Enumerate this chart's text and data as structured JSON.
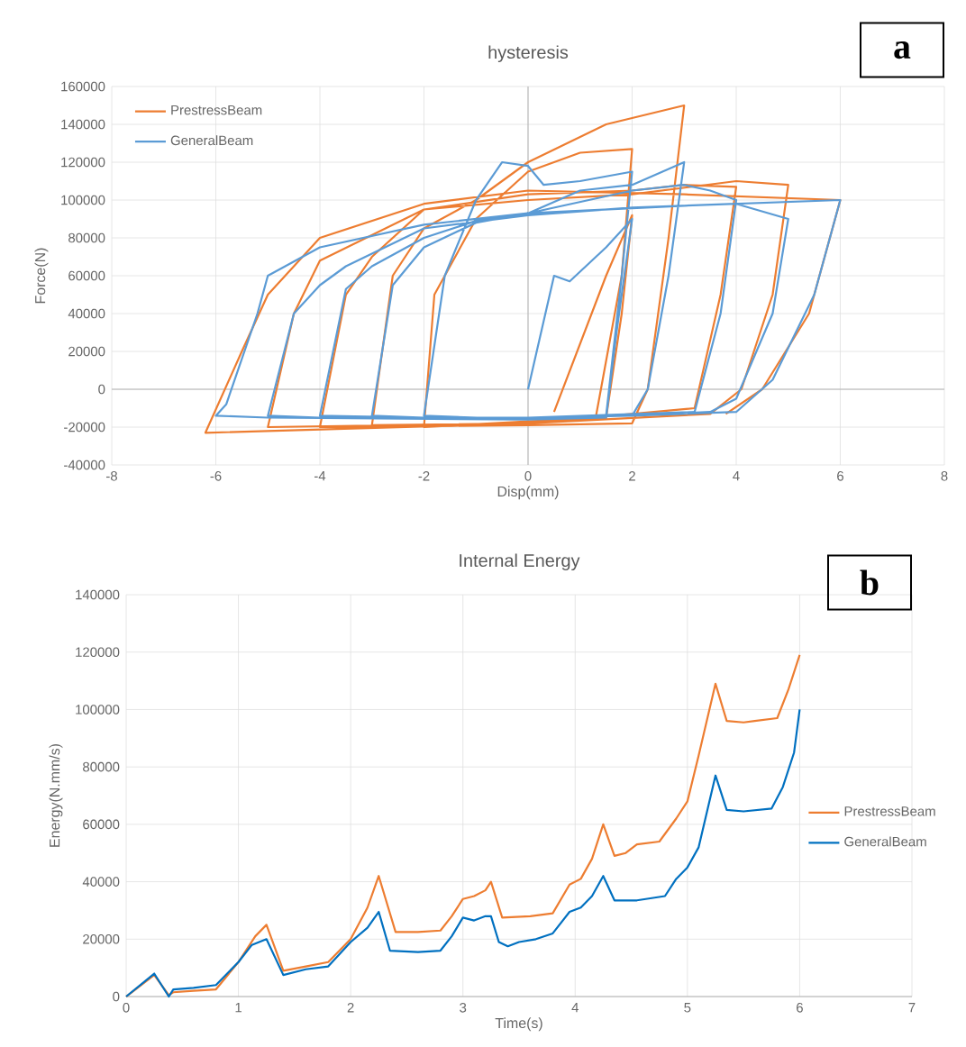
{
  "chart_data": [
    {
      "type": "line",
      "title": "hysteresis",
      "xlabel": "Disp(mm)",
      "ylabel": "Force(N)",
      "xlim": [
        -8,
        8
      ],
      "ylim": [
        -40000,
        160000
      ],
      "xticks": [
        -8,
        -6,
        -4,
        -2,
        0,
        2,
        4,
        6,
        8
      ],
      "yticks": [
        -40000,
        -20000,
        0,
        20000,
        40000,
        60000,
        80000,
        100000,
        120000,
        140000,
        160000
      ],
      "grid": true,
      "legend": "top left",
      "annotations": [
        "a"
      ],
      "series": [
        {
          "name": "PrestressBeam",
          "color": "#ed7d31",
          "x": [
            0.5,
            1.5,
            2,
            1.8,
            1.5,
            0,
            -2,
            -1.8,
            -1,
            0,
            1,
            2,
            1.8,
            1.3,
            0,
            -3,
            -2.6,
            -2,
            -1,
            0,
            1.5,
            3,
            2.7,
            2.3,
            2,
            0,
            -4,
            -3.5,
            -3,
            -2,
            0,
            2,
            3,
            4,
            3.7,
            3.2,
            0,
            -5,
            -4.5,
            -4,
            -2,
            0,
            2,
            4,
            5,
            4.7,
            4.1,
            3.5,
            0,
            -6.2,
            -5.5,
            -5,
            -4,
            -2,
            0,
            3,
            6,
            5.4,
            4.5,
            3.8
          ],
          "values": [
            -12000,
            60000,
            92000,
            40000,
            -15000,
            -17000,
            -20000,
            50000,
            90000,
            115000,
            125000,
            127000,
            60000,
            -15000,
            -18000,
            -19000,
            60000,
            85000,
            100000,
            120000,
            140000,
            150000,
            80000,
            0,
            -18000,
            -19000,
            -20000,
            50000,
            70000,
            95000,
            103000,
            105000,
            108000,
            107000,
            50000,
            -10000,
            -18000,
            -20000,
            40000,
            68000,
            95000,
            100000,
            103000,
            110000,
            108000,
            50000,
            0,
            -13000,
            -18000,
            -23000,
            20000,
            50000,
            80000,
            98000,
            105000,
            103000,
            100000,
            40000,
            0,
            -13000
          ]
        },
        {
          "name": "GeneralBeam",
          "color": "#5b9bd5",
          "x": [
            0,
            0.5,
            0.8,
            1.5,
            2,
            1.7,
            1.5,
            0,
            -2,
            -1.6,
            -1,
            -0.5,
            0,
            0.3,
            1,
            2,
            1.8,
            1.5,
            0,
            -2,
            -3,
            -2.6,
            -2,
            -1,
            0,
            1,
            2,
            3,
            2.7,
            2.3,
            2,
            0,
            -2,
            -4,
            -3.5,
            -3,
            -2,
            -1,
            0,
            2,
            3,
            3.5,
            4,
            3.7,
            3.2,
            0,
            -4,
            -5,
            -4.5,
            -4,
            -3.5,
            -2,
            0,
            2,
            4,
            5,
            4.7,
            4,
            3.5,
            0,
            -5,
            -6,
            -5.8,
            -5.2,
            -5,
            -4,
            -2,
            0,
            3,
            6,
            5.5,
            4.7,
            4,
            2
          ],
          "values": [
            0,
            60000,
            57000,
            75000,
            90000,
            30000,
            -15000,
            -16000,
            -14000,
            60000,
            100000,
            120000,
            118000,
            108000,
            110000,
            115000,
            60000,
            -14000,
            -15000,
            -15000,
            -14000,
            55000,
            75000,
            88000,
            93000,
            105000,
            108000,
            120000,
            60000,
            0,
            -14000,
            -15000,
            -15000,
            -14000,
            53000,
            65000,
            80000,
            89000,
            93000,
            105000,
            108000,
            105000,
            100000,
            40000,
            -12000,
            -15000,
            -15000,
            -14000,
            40000,
            55000,
            65000,
            85000,
            92000,
            96000,
            98000,
            90000,
            40000,
            -5000,
            -12000,
            -16000,
            -15000,
            -14000,
            -8000,
            40000,
            60000,
            75000,
            87000,
            93000,
            97000,
            100000,
            50000,
            5000,
            -12000,
            -14000
          ]
        }
      ]
    },
    {
      "type": "line",
      "title": "Internal Energy",
      "xlabel": "Time(s)",
      "ylabel": "Energy(N.mm/s)",
      "xlim": [
        0,
        7
      ],
      "ylim": [
        0,
        140000
      ],
      "xticks": [
        0,
        1,
        2,
        3,
        4,
        5,
        6,
        7
      ],
      "yticks": [
        0,
        20000,
        40000,
        60000,
        80000,
        100000,
        120000,
        140000
      ],
      "grid": true,
      "legend": "right",
      "annotations": [
        "b"
      ],
      "series": [
        {
          "name": "PrestressBeam",
          "color": "#ed7d31",
          "x": [
            0,
            0.25,
            0.38,
            0.42,
            0.6,
            0.8,
            1.0,
            1.15,
            1.25,
            1.4,
            1.6,
            1.8,
            2.0,
            2.15,
            2.25,
            2.4,
            2.6,
            2.8,
            2.9,
            3.0,
            3.1,
            3.2,
            3.25,
            3.35,
            3.6,
            3.8,
            3.95,
            4.05,
            4.15,
            4.25,
            4.35,
            4.45,
            4.55,
            4.75,
            4.9,
            5.0,
            5.1,
            5.25,
            5.35,
            5.5,
            5.6,
            5.8,
            5.9,
            6.0
          ],
          "values": [
            0,
            7500,
            500,
            1500,
            2000,
            2500,
            12000,
            21000,
            25000,
            9000,
            10500,
            12000,
            20000,
            31000,
            42000,
            22500,
            22500,
            23000,
            28000,
            34000,
            35000,
            37000,
            40000,
            27500,
            28000,
            29000,
            39000,
            41000,
            48000,
            60000,
            49000,
            50000,
            53000,
            54000,
            62000,
            68000,
            84000,
            109000,
            96000,
            95500,
            96000,
            97000,
            107000,
            119000
          ]
        },
        {
          "name": "GeneralBeam",
          "color": "#0070c0",
          "x": [
            0,
            0.25,
            0.38,
            0.42,
            0.6,
            0.8,
            1.0,
            1.12,
            1.25,
            1.4,
            1.6,
            1.8,
            2.0,
            2.15,
            2.25,
            2.35,
            2.6,
            2.8,
            2.9,
            3.0,
            3.1,
            3.2,
            3.25,
            3.32,
            3.4,
            3.5,
            3.65,
            3.8,
            3.95,
            4.05,
            4.15,
            4.25,
            4.35,
            4.55,
            4.8,
            4.9,
            5.0,
            5.1,
            5.25,
            5.35,
            5.5,
            5.75,
            5.85,
            5.95,
            6.0
          ],
          "values": [
            0,
            8000,
            0,
            2500,
            3000,
            4000,
            12000,
            18000,
            20000,
            7500,
            9500,
            10500,
            19000,
            24000,
            29500,
            16000,
            15500,
            16000,
            21000,
            27500,
            26500,
            28000,
            28000,
            19000,
            17500,
            19000,
            20000,
            22000,
            29500,
            31000,
            35000,
            42000,
            33500,
            33500,
            35000,
            41000,
            45000,
            52000,
            77000,
            65000,
            64500,
            65500,
            73000,
            85000,
            100000
          ]
        }
      ]
    }
  ]
}
